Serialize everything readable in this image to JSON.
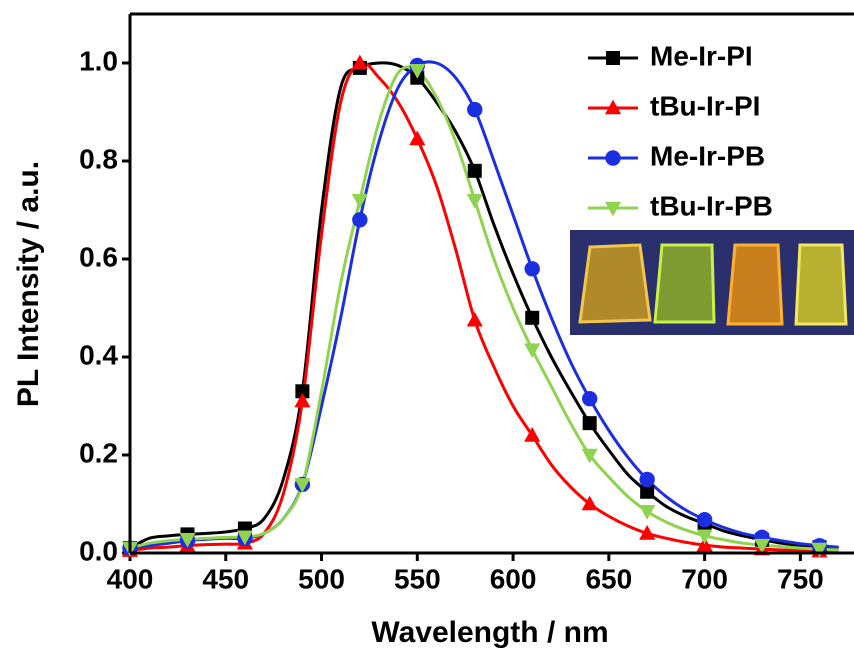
{
  "chart_data": {
    "type": "line",
    "x_label": "Wavelength / nm",
    "y_label": "PL Intensity / a.u.",
    "x": [
      400,
      410,
      420,
      430,
      440,
      450,
      460,
      470,
      480,
      490,
      500,
      510,
      520,
      530,
      540,
      550,
      560,
      570,
      580,
      590,
      600,
      610,
      620,
      630,
      640,
      650,
      660,
      670,
      680,
      690,
      700,
      710,
      720,
      730,
      740,
      750,
      760,
      770
    ],
    "marker_every": 3,
    "series": [
      {
        "name": "Me-Ir-PI",
        "color": "#000000",
        "marker": "square",
        "values": [
          0.01,
          0.03,
          0.035,
          0.038,
          0.04,
          0.043,
          0.05,
          0.07,
          0.15,
          0.33,
          0.7,
          0.95,
          0.99,
          1.0,
          0.995,
          0.97,
          0.92,
          0.86,
          0.78,
          0.67,
          0.57,
          0.48,
          0.4,
          0.33,
          0.265,
          0.21,
          0.16,
          0.125,
          0.095,
          0.075,
          0.06,
          0.045,
          0.035,
          0.027,
          0.02,
          0.015,
          0.012,
          0.01
        ]
      },
      {
        "name": "tBu-Ir-PI",
        "color": "#ff0000",
        "marker": "triangle",
        "values": [
          0.005,
          0.01,
          0.012,
          0.015,
          0.017,
          0.018,
          0.02,
          0.04,
          0.12,
          0.31,
          0.65,
          0.92,
          1.0,
          0.97,
          0.92,
          0.845,
          0.75,
          0.62,
          0.475,
          0.38,
          0.3,
          0.24,
          0.18,
          0.135,
          0.1,
          0.075,
          0.055,
          0.04,
          0.03,
          0.022,
          0.016,
          0.012,
          0.01,
          0.008,
          0.006,
          0.005,
          0.004,
          0.003
        ]
      },
      {
        "name": "Me-Ir-PB",
        "color": "#1c2fe0",
        "marker": "circle",
        "values": [
          0.01,
          0.015,
          0.02,
          0.025,
          0.028,
          0.03,
          0.03,
          0.04,
          0.07,
          0.14,
          0.3,
          0.48,
          0.68,
          0.84,
          0.95,
          0.995,
          1.0,
          0.97,
          0.905,
          0.8,
          0.69,
          0.58,
          0.48,
          0.39,
          0.315,
          0.25,
          0.195,
          0.15,
          0.115,
          0.088,
          0.068,
          0.052,
          0.04,
          0.032,
          0.025,
          0.019,
          0.015,
          0.012
        ]
      },
      {
        "name": "tBu-Ir-PB",
        "color": "#8fd34f",
        "marker": "triangle-down",
        "values": [
          0.01,
          0.02,
          0.025,
          0.028,
          0.03,
          0.032,
          0.033,
          0.04,
          0.07,
          0.14,
          0.33,
          0.55,
          0.72,
          0.88,
          0.98,
          0.985,
          0.93,
          0.84,
          0.72,
          0.6,
          0.5,
          0.415,
          0.34,
          0.265,
          0.2,
          0.155,
          0.115,
          0.085,
          0.063,
          0.047,
          0.035,
          0.027,
          0.02,
          0.016,
          0.013,
          0.01,
          0.008,
          0.006
        ]
      }
    ],
    "xlim": [
      400,
      778
    ],
    "xticks": [
      400,
      450,
      500,
      550,
      600,
      650,
      700,
      750
    ],
    "ylim": [
      0,
      1.1
    ],
    "yticks": [
      {
        "value": 0,
        "label": "0.0"
      },
      0.2,
      0.4,
      0.6,
      0.8,
      {
        "value": 1,
        "label": "1.0"
      }
    ],
    "legend": "top-right"
  }
}
